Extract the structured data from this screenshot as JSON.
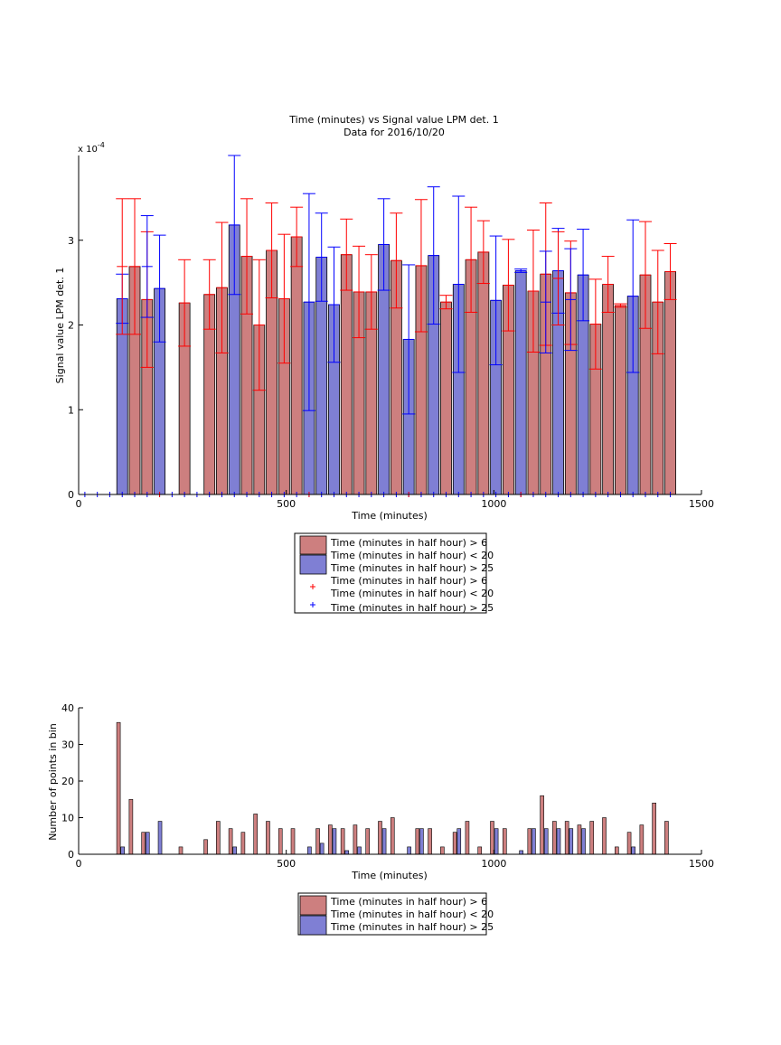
{
  "chart_data": [
    {
      "type": "bar",
      "title": "Time (minutes) vs Signal value LPM det. 1",
      "subtitle": "Data for 2016/10/20",
      "xlabel": "Time (minutes)",
      "ylabel": "Signal value LPM det. 1",
      "y_exponent": "x 10",
      "y_exponent_power": "-4",
      "xlim": [
        0,
        1500
      ],
      "ylim": [
        0,
        4
      ],
      "xticks": [
        "0",
        "500",
        "1000",
        "1500"
      ],
      "yticks": [
        "0",
        "1",
        "2",
        "3"
      ],
      "grid": false,
      "legend_position": "below",
      "colors": {
        "red_bar": "#cd7f7f",
        "blue_bar": "#7f7fd4",
        "red_err": "#ff0000",
        "blue_err": "#0000ff"
      },
      "series": [
        {
          "name": "Time (minutes in half hour) > 6 Time (minutes in half hour) < 20",
          "points": [
            {
              "x": 135,
              "y": 2.69,
              "e": 0.8
            },
            {
              "x": 165,
              "y": 2.3,
              "e": 0.8
            },
            {
              "x": 255,
              "y": 2.26,
              "e": 0.51
            },
            {
              "x": 315,
              "y": 2.36,
              "e": 0.41
            },
            {
              "x": 345,
              "y": 2.44,
              "e": 0.77
            },
            {
              "x": 405,
              "y": 2.81,
              "e": 0.68
            },
            {
              "x": 435,
              "y": 2.0,
              "e": 0.77
            },
            {
              "x": 465,
              "y": 2.88,
              "e": 0.56
            },
            {
              "x": 495,
              "y": 2.31,
              "e": 0.76
            },
            {
              "x": 525,
              "y": 3.04,
              "e": 0.35
            },
            {
              "x": 645,
              "y": 2.83,
              "e": 0.42
            },
            {
              "x": 675,
              "y": 2.39,
              "e": 0.54
            },
            {
              "x": 705,
              "y": 2.39,
              "e": 0.44
            },
            {
              "x": 765,
              "y": 2.76,
              "e": 0.56
            },
            {
              "x": 825,
              "y": 2.7,
              "e": 0.78
            },
            {
              "x": 885,
              "y": 2.27,
              "e": 0.08
            },
            {
              "x": 945,
              "y": 2.77,
              "e": 0.62
            },
            {
              "x": 975,
              "y": 2.86,
              "e": 0.37
            },
            {
              "x": 1035,
              "y": 2.47,
              "e": 0.54
            },
            {
              "x": 1095,
              "y": 2.4,
              "e": 0.72
            },
            {
              "x": 1125,
              "y": 2.6,
              "e": 0.84
            },
            {
              "x": 1185,
              "y": 2.38,
              "e": 0.61
            },
            {
              "x": 1245,
              "y": 2.01,
              "e": 0.53
            },
            {
              "x": 1275,
              "y": 2.48,
              "e": 0.33
            },
            {
              "x": 1305,
              "y": 2.23,
              "e": 0.02
            },
            {
              "x": 1365,
              "y": 2.59,
              "e": 0.63
            },
            {
              "x": 1395,
              "y": 2.27,
              "e": 0.61
            },
            {
              "x": 1425,
              "y": 2.63,
              "e": 0.33
            }
          ]
        },
        {
          "name": "Time (minutes in half hour) > 25",
          "points": [
            {
              "x": 105,
              "y": 2.31,
              "e": 0.29
            },
            {
              "x": 195,
              "y": 2.43,
              "e": 0.63
            },
            {
              "x": 375,
              "y": 3.18,
              "e": 0.82
            },
            {
              "x": 555,
              "y": 2.27,
              "e": 1.28
            },
            {
              "x": 585,
              "y": 2.8,
              "e": 0.52
            },
            {
              "x": 615,
              "y": 2.24,
              "e": 0.68
            },
            {
              "x": 735,
              "y": 2.95,
              "e": 0.54
            },
            {
              "x": 795,
              "y": 1.83,
              "e": 0.88
            },
            {
              "x": 855,
              "y": 2.82,
              "e": 0.81
            },
            {
              "x": 915,
              "y": 2.48,
              "e": 1.04
            },
            {
              "x": 1005,
              "y": 2.29,
              "e": 0.76
            },
            {
              "x": 1065,
              "y": 2.64,
              "e": 0.02
            },
            {
              "x": 1155,
              "y": 2.64,
              "e": 0.5
            },
            {
              "x": 1215,
              "y": 2.59,
              "e": 0.54
            },
            {
              "x": 1335,
              "y": 2.34,
              "e": 0.9
            }
          ]
        }
      ],
      "overlay_bars": [
        {
          "x": 105,
          "y": 2.69,
          "e": 0.8,
          "color": "red"
        },
        {
          "x": 165,
          "y": 2.69,
          "e": 0.6,
          "color": "blue"
        },
        {
          "x": 1125,
          "y": 2.27,
          "e": 0.6,
          "color": "blue"
        },
        {
          "x": 1185,
          "y": 2.3,
          "e": 0.6,
          "color": "blue"
        },
        {
          "x": 1155,
          "y": 2.55,
          "e": 0.55,
          "color": "red"
        }
      ],
      "legend": [
        {
          "kind": "patch",
          "color": "red",
          "lines": [
            "Time (minutes in half hour) > 6",
            "Time (minutes in half hour) < 20"
          ]
        },
        {
          "kind": "patch",
          "color": "blue",
          "lines": [
            "Time (minutes in half hour) > 25"
          ]
        },
        {
          "kind": "marker",
          "color": "red",
          "lines": [
            "Time (minutes in half hour) > 6",
            "Time (minutes in half hour) < 20"
          ]
        },
        {
          "kind": "marker",
          "color": "blue",
          "lines": [
            "Time (minutes in half hour) > 25"
          ]
        }
      ],
      "axis_markers": {
        "red": [
          195,
          555,
          795,
          1065
        ],
        "blue": [
          15,
          45,
          75,
          105,
          135,
          165,
          195,
          225,
          255,
          285,
          315,
          345,
          375,
          405,
          435,
          465,
          495,
          525,
          555,
          585,
          615,
          645,
          675,
          705,
          735,
          765,
          795,
          825,
          855,
          885,
          915,
          945,
          975,
          1005,
          1035,
          1065,
          1095,
          1125,
          1155,
          1185,
          1215,
          1245,
          1275,
          1305,
          1335,
          1365,
          1395,
          1425
        ]
      }
    },
    {
      "type": "bar",
      "title": "",
      "xlabel": "Time (minutes)",
      "ylabel": "Number of points in bin",
      "xlim": [
        0,
        1500
      ],
      "ylim": [
        0,
        40
      ],
      "xticks": [
        "0",
        "500",
        "1000",
        "1500"
      ],
      "yticks": [
        "0",
        "10",
        "20",
        "30",
        "40"
      ],
      "grid": false,
      "legend_position": "below",
      "series": [
        {
          "name": "Time (minutes in half hour) > 6 Time (minutes in half hour) < 20",
          "points": [
            {
              "x": 96,
              "y": 36
            },
            {
              "x": 126,
              "y": 15
            },
            {
              "x": 156,
              "y": 6
            },
            {
              "x": 246,
              "y": 2
            },
            {
              "x": 306,
              "y": 4
            },
            {
              "x": 336,
              "y": 9
            },
            {
              "x": 366,
              "y": 7
            },
            {
              "x": 396,
              "y": 6
            },
            {
              "x": 426,
              "y": 11
            },
            {
              "x": 456,
              "y": 9
            },
            {
              "x": 486,
              "y": 7
            },
            {
              "x": 516,
              "y": 7
            },
            {
              "x": 576,
              "y": 7
            },
            {
              "x": 606,
              "y": 8
            },
            {
              "x": 636,
              "y": 7
            },
            {
              "x": 666,
              "y": 8
            },
            {
              "x": 696,
              "y": 7
            },
            {
              "x": 726,
              "y": 9
            },
            {
              "x": 756,
              "y": 10
            },
            {
              "x": 816,
              "y": 7
            },
            {
              "x": 846,
              "y": 7
            },
            {
              "x": 876,
              "y": 2
            },
            {
              "x": 906,
              "y": 6
            },
            {
              "x": 936,
              "y": 9
            },
            {
              "x": 966,
              "y": 2
            },
            {
              "x": 996,
              "y": 9
            },
            {
              "x": 1026,
              "y": 7
            },
            {
              "x": 1086,
              "y": 7
            },
            {
              "x": 1116,
              "y": 16
            },
            {
              "x": 1146,
              "y": 9
            },
            {
              "x": 1176,
              "y": 9
            },
            {
              "x": 1206,
              "y": 8
            },
            {
              "x": 1236,
              "y": 9
            },
            {
              "x": 1266,
              "y": 10
            },
            {
              "x": 1296,
              "y": 2
            },
            {
              "x": 1326,
              "y": 6
            },
            {
              "x": 1356,
              "y": 8
            },
            {
              "x": 1386,
              "y": 14
            },
            {
              "x": 1416,
              "y": 9
            }
          ]
        },
        {
          "name": "Time (minutes in half hour) > 25",
          "points": [
            {
              "x": 106,
              "y": 2
            },
            {
              "x": 166,
              "y": 6
            },
            {
              "x": 196,
              "y": 9
            },
            {
              "x": 376,
              "y": 2
            },
            {
              "x": 556,
              "y": 2
            },
            {
              "x": 586,
              "y": 3
            },
            {
              "x": 616,
              "y": 7
            },
            {
              "x": 646,
              "y": 1
            },
            {
              "x": 676,
              "y": 2
            },
            {
              "x": 736,
              "y": 7
            },
            {
              "x": 796,
              "y": 2
            },
            {
              "x": 826,
              "y": 7
            },
            {
              "x": 916,
              "y": 7
            },
            {
              "x": 1006,
              "y": 7
            },
            {
              "x": 1066,
              "y": 1
            },
            {
              "x": 1096,
              "y": 7
            },
            {
              "x": 1126,
              "y": 7
            },
            {
              "x": 1156,
              "y": 7
            },
            {
              "x": 1186,
              "y": 7
            },
            {
              "x": 1216,
              "y": 7
            },
            {
              "x": 1336,
              "y": 2
            }
          ]
        }
      ],
      "legend": [
        {
          "kind": "patch",
          "color": "red",
          "lines": [
            "Time (minutes in half hour) > 6",
            "Time (minutes in half hour) < 20"
          ]
        },
        {
          "kind": "patch",
          "color": "blue",
          "lines": [
            "Time (minutes in half hour) > 25"
          ]
        }
      ]
    }
  ]
}
